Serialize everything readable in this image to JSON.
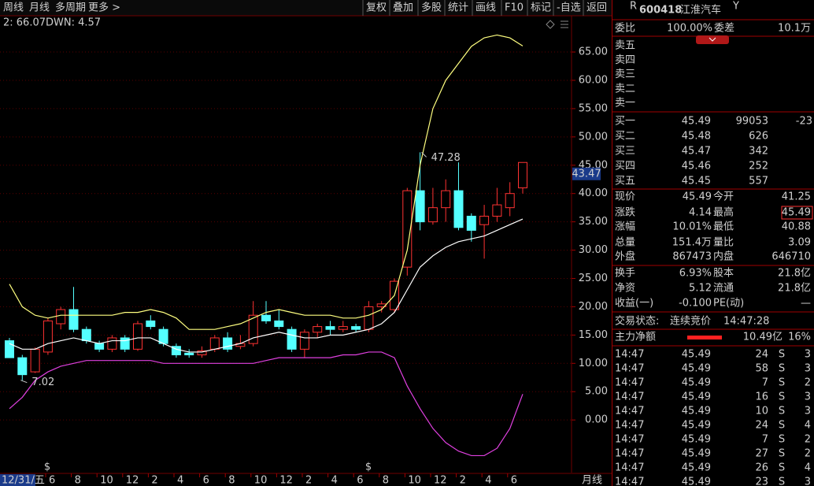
{
  "toolbar": {
    "left": [
      "周线",
      "月线",
      "多周期",
      "更多 >"
    ],
    "right": [
      "复权",
      "叠加",
      "多股",
      "统计",
      "画线",
      "F10",
      "标记",
      "-自选",
      "返回"
    ]
  },
  "chart_data": {
    "type": "candlestick",
    "legend": [
      "2: 66.07",
      "DWN: 4.57"
    ],
    "up_color": "#ff3232",
    "down_color": "#54ffff",
    "grid": true,
    "ylim": [
      -9.3,
      68.9
    ],
    "yticks": [
      {
        "value": 0,
        "label": "0.00"
      },
      {
        "value": 5,
        "label": "5.00"
      },
      {
        "value": 10,
        "label": "10.00"
      },
      {
        "value": 15,
        "label": "15.00"
      },
      {
        "value": 20,
        "label": "20.00"
      },
      {
        "value": 25,
        "label": "25.00"
      },
      {
        "value": 30,
        "label": "30.00"
      },
      {
        "value": 35,
        "label": "35.00"
      },
      {
        "value": 40,
        "label": "40.00"
      },
      {
        "value": 45,
        "label": "45.00"
      },
      {
        "value": 50,
        "label": "50.00"
      },
      {
        "value": 55,
        "label": "55.00"
      },
      {
        "value": 60,
        "label": "60.00"
      },
      {
        "value": 65,
        "label": "65.00"
      }
    ],
    "candles": [
      {
        "o": 14,
        "h": 14.5,
        "l": 11,
        "c": 11
      },
      {
        "o": 11,
        "h": 11.5,
        "l": 7.02,
        "c": 8
      },
      {
        "o": 8.5,
        "h": 12.8,
        "l": 8.3,
        "c": 12.5
      },
      {
        "o": 12,
        "h": 18,
        "l": 11.5,
        "c": 17.5
      },
      {
        "o": 17,
        "h": 20,
        "l": 16,
        "c": 19.5
      },
      {
        "o": 19.5,
        "h": 23.5,
        "l": 15.5,
        "c": 16
      },
      {
        "o": 16,
        "h": 16.5,
        "l": 13.5,
        "c": 14
      },
      {
        "o": 13.5,
        "h": 14,
        "l": 12,
        "c": 12.5
      },
      {
        "o": 12.5,
        "h": 15,
        "l": 12,
        "c": 14.5
      },
      {
        "o": 14.5,
        "h": 15,
        "l": 12,
        "c": 12.5
      },
      {
        "o": 12.5,
        "h": 17.5,
        "l": 12.2,
        "c": 17
      },
      {
        "o": 17.5,
        "h": 18.5,
        "l": 16,
        "c": 16.5
      },
      {
        "o": 16,
        "h": 16.5,
        "l": 13,
        "c": 13.5
      },
      {
        "o": 13,
        "h": 13.5,
        "l": 11,
        "c": 11.5
      },
      {
        "o": 11.8,
        "h": 12.5,
        "l": 11,
        "c": 11.5
      },
      {
        "o": 11.5,
        "h": 13,
        "l": 11,
        "c": 12.2
      },
      {
        "o": 12.5,
        "h": 15,
        "l": 12,
        "c": 14.5
      },
      {
        "o": 14.5,
        "h": 15.5,
        "l": 12,
        "c": 12.5
      },
      {
        "o": 13,
        "h": 15,
        "l": 12.5,
        "c": 13.5
      },
      {
        "o": 13.5,
        "h": 21,
        "l": 13,
        "c": 18.5
      },
      {
        "o": 18.5,
        "h": 21,
        "l": 17,
        "c": 17.5
      },
      {
        "o": 17.5,
        "h": 19.5,
        "l": 16,
        "c": 16.5
      },
      {
        "o": 16,
        "h": 16.5,
        "l": 12,
        "c": 12.5
      },
      {
        "o": 12.5,
        "h": 16,
        "l": 11,
        "c": 15.5
      },
      {
        "o": 15.5,
        "h": 17,
        "l": 14.5,
        "c": 16.5
      },
      {
        "o": 16.5,
        "h": 17.5,
        "l": 15,
        "c": 16
      },
      {
        "o": 16,
        "h": 17.5,
        "l": 15.5,
        "c": 16.5
      },
      {
        "o": 16.5,
        "h": 17,
        "l": 15.5,
        "c": 16
      },
      {
        "o": 16,
        "h": 21,
        "l": 15.5,
        "c": 20
      },
      {
        "o": 20,
        "h": 21,
        "l": 19,
        "c": 20.5
      },
      {
        "o": 19.5,
        "h": 25,
        "l": 19,
        "c": 24.5
      },
      {
        "o": 27,
        "h": 41,
        "l": 25.5,
        "c": 40.5
      },
      {
        "o": 40.5,
        "h": 47.28,
        "l": 33.5,
        "c": 35
      },
      {
        "o": 35,
        "h": 41,
        "l": 34.5,
        "c": 37.5
      },
      {
        "o": 37.5,
        "h": 42.5,
        "l": 35,
        "c": 40.5
      },
      {
        "o": 40.5,
        "h": 45.5,
        "l": 33.5,
        "c": 34
      },
      {
        "o": 36,
        "h": 36.5,
        "l": 31.5,
        "c": 33.5
      },
      {
        "o": 34.5,
        "h": 38,
        "l": 28.5,
        "c": 36
      },
      {
        "o": 36,
        "h": 41,
        "l": 35,
        "c": 38
      },
      {
        "o": 37.5,
        "h": 42,
        "l": 36,
        "c": 40
      },
      {
        "o": 41,
        "h": 45.49,
        "l": 40,
        "c": 45.49
      }
    ],
    "series": [
      {
        "color": "#ffff80",
        "values": [
          24,
          20,
          18.5,
          18,
          18.5,
          18.5,
          18.5,
          18.5,
          18.5,
          19,
          19,
          19.5,
          19,
          18,
          16,
          16,
          16,
          16.5,
          17,
          18,
          19,
          19.5,
          19,
          18.5,
          18.5,
          18.5,
          18,
          18,
          18.5,
          19.5,
          22,
          30,
          45,
          55,
          60,
          63,
          66,
          67.5,
          68,
          67.5,
          66.07
        ]
      },
      {
        "color": "#ffffff",
        "values": [
          13.5,
          12.5,
          12.5,
          13.5,
          14,
          14.5,
          14,
          13.5,
          14,
          14,
          14.5,
          14.5,
          13.5,
          12.5,
          12,
          12,
          12.5,
          13,
          13.5,
          14.5,
          15,
          15.5,
          15,
          14.5,
          14.5,
          15,
          15,
          15.5,
          16,
          17,
          19,
          23,
          27,
          29,
          30.5,
          31.5,
          32,
          32.5,
          33.5,
          34.5,
          35.5
        ]
      },
      {
        "color": "#e040e0",
        "values": [
          2,
          4,
          7,
          8.5,
          9.5,
          10,
          10.5,
          10.5,
          10.5,
          10.5,
          10.5,
          10.5,
          10,
          10,
          10,
          10,
          10,
          10,
          10,
          10,
          10.5,
          11,
          11,
          11,
          11,
          11,
          11.5,
          11.5,
          12,
          12,
          11,
          6,
          2,
          -1.5,
          -4,
          -5.5,
          -6.3,
          -6.3,
          -5,
          -1.5,
          4.57
        ]
      }
    ],
    "cursor_price": 43.47,
    "x_labels": [
      "6",
      "8",
      "10",
      "12",
      "2",
      "4",
      "6",
      "8",
      "10",
      "12",
      "2",
      "4",
      "6",
      "8",
      "10",
      "12",
      "2",
      "4",
      "6"
    ],
    "date_label": "12/31/五",
    "period": "月线",
    "signals": [
      "$",
      "$"
    ]
  },
  "side": {
    "code_prefix": "R",
    "code": "600418",
    "name": "江淮汽车",
    "suffix": "Y",
    "ratio": [
      "委比",
      "100.00%",
      "委差",
      "10.1万"
    ],
    "sell": [
      "卖五",
      "卖四",
      "卖三",
      "卖二",
      "卖一"
    ],
    "buy": [
      [
        "买一",
        "45.49",
        "99053",
        "-23"
      ],
      [
        "买二",
        "45.48",
        "626"
      ],
      [
        "买三",
        "45.47",
        "342"
      ],
      [
        "买四",
        "45.46",
        "252"
      ],
      [
        "买五",
        "45.45",
        "557"
      ]
    ],
    "stats": [
      [
        "现价",
        "45.49",
        "今开",
        "41.25"
      ],
      [
        "涨跌",
        "4.14",
        "最高",
        "45.49"
      ],
      [
        "涨幅",
        "10.01%",
        "最低",
        "40.88"
      ],
      [
        "总量",
        "151.4万",
        "量比",
        "3.09"
      ],
      [
        "外盘",
        "867473",
        "内盘",
        "646710"
      ],
      [
        "换手",
        "6.93%",
        "股本",
        "21.8亿"
      ],
      [
        "净资",
        "5.12",
        "流通",
        "21.8亿"
      ],
      [
        "收益(一)",
        "-0.100",
        "PE(动)",
        "—"
      ]
    ],
    "status": [
      "交易状态:",
      "连续竞价",
      "14:47:28"
    ],
    "main_flow": [
      "主力净额",
      "10.49亿",
      "16%"
    ],
    "ticks": [
      [
        "14:47",
        "45.49",
        "24",
        "S",
        "3"
      ],
      [
        "14:47",
        "45.49",
        "58",
        "S",
        "3"
      ],
      [
        "14:47",
        "45.49",
        "7",
        "S",
        "2"
      ],
      [
        "14:47",
        "45.49",
        "16",
        "S",
        "3"
      ],
      [
        "14:47",
        "45.49",
        "10",
        "S",
        "3"
      ],
      [
        "14:47",
        "45.49",
        "24",
        "S",
        "4"
      ],
      [
        "14:47",
        "45.49",
        "7",
        "S",
        "2"
      ],
      [
        "14:47",
        "45.49",
        "27",
        "S",
        "2"
      ],
      [
        "14:47",
        "45.49",
        "26",
        "S",
        "4"
      ],
      [
        "14:47",
        "45.49",
        "23",
        "S",
        "3"
      ]
    ]
  }
}
